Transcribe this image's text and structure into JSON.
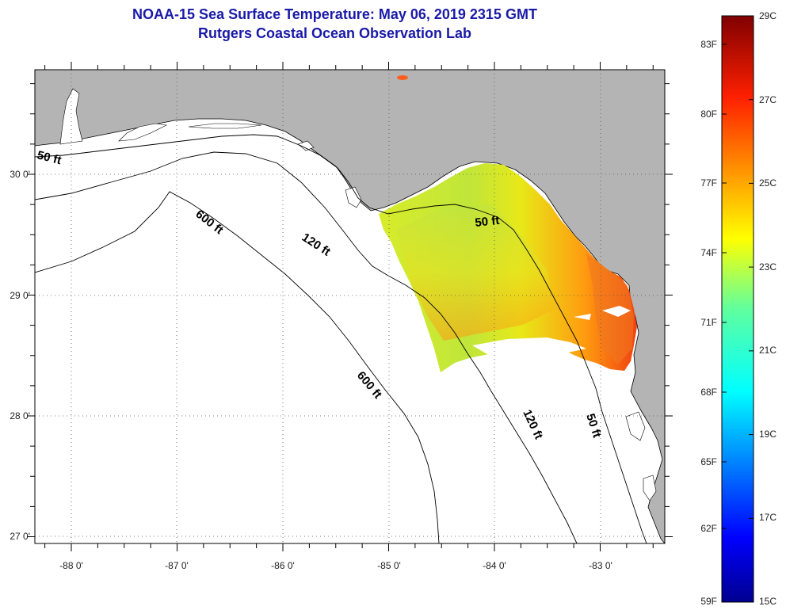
{
  "header": {
    "title": "NOAA-15 Sea Surface Temperature:  May 06, 2019 2315 GMT",
    "subtitle": "Rutgers Coastal Ocean Observation Lab"
  },
  "map": {
    "lon_labels": [
      "-88 0'",
      "-87 0'",
      "-86 0'",
      "-85 0'",
      "-84 0'",
      "-83 0'"
    ],
    "lat_labels": [
      "30 0'",
      "29 0'",
      "28 0'",
      "27 0'"
    ],
    "contour_labels": [
      "50 ft",
      "600 ft",
      "120 ft",
      "50 ft",
      "600 ft",
      "120 ft",
      "50 ft"
    ],
    "colors": {
      "land": "#b4b4b4",
      "sea": "#ffffff",
      "coast": "#000000",
      "grid": "#555555"
    }
  },
  "colorbar": {
    "celsius_labels": [
      "29C",
      "27C",
      "25C",
      "23C",
      "21C",
      "19C",
      "17C",
      "15C"
    ],
    "fahrenheit_labels": [
      "83F",
      "80F",
      "77F",
      "74F",
      "71F",
      "68F",
      "65F",
      "62F",
      "59F"
    ],
    "range_c": [
      15,
      29
    ],
    "colormap": "jet"
  }
}
